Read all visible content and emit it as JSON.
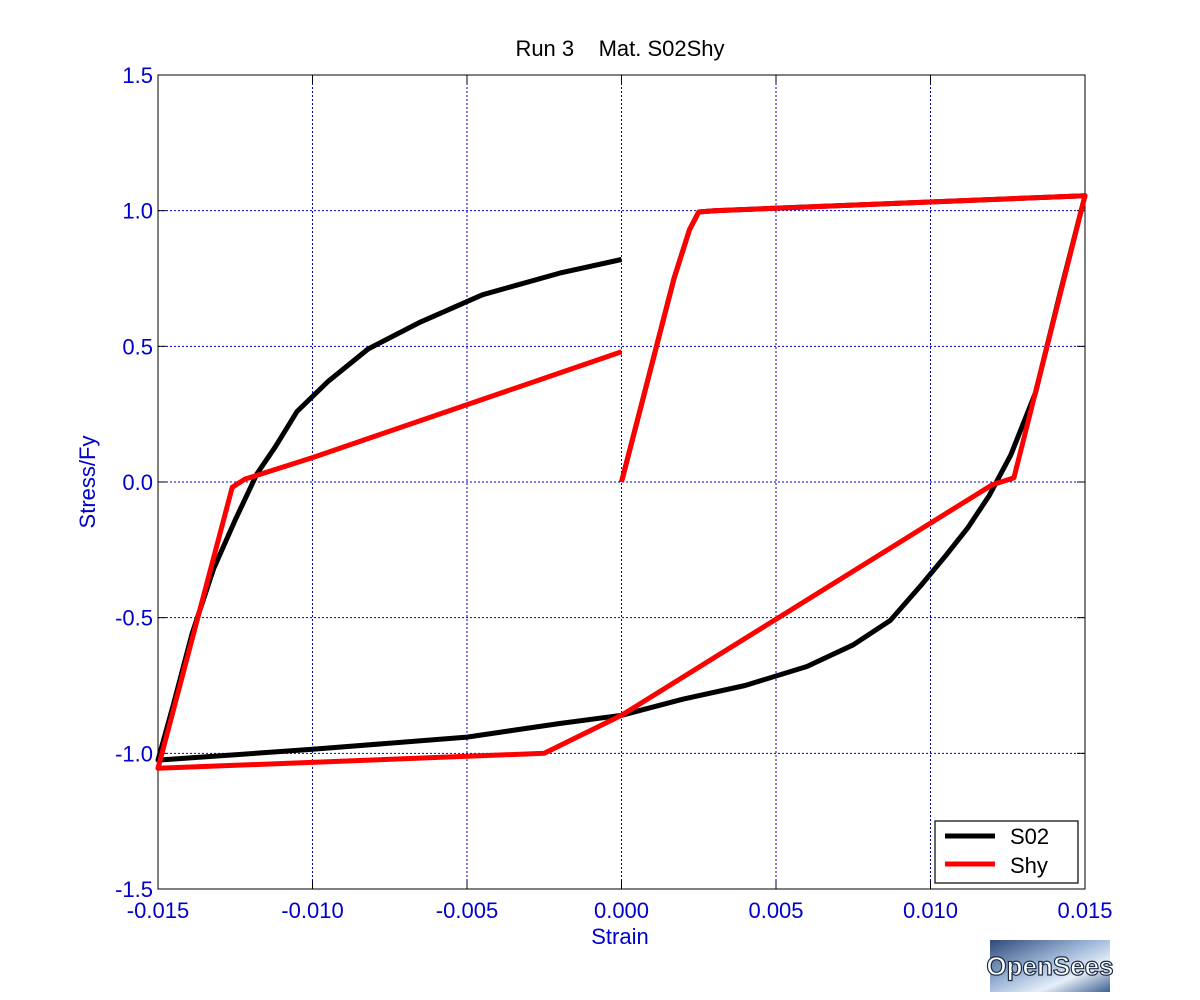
{
  "chart_data": {
    "type": "line",
    "title": "Run 3    Mat. S02Shy",
    "xlabel": "Strain",
    "ylabel": "Stress/Fy",
    "xlim": [
      -0.015,
      0.015
    ],
    "ylim": [
      -1.5,
      1.5
    ],
    "x_ticks": [
      -0.015,
      -0.01,
      -0.005,
      0.0,
      0.005,
      0.01,
      0.015
    ],
    "x_tick_labels": [
      "-0.015",
      "-0.010",
      "-0.005",
      "0.000",
      "0.005",
      "0.010",
      "0.015"
    ],
    "y_ticks": [
      1.5,
      1.0,
      0.5,
      0.0,
      -0.5,
      -1.0,
      -1.5
    ],
    "y_tick_labels": [
      "1.5",
      "1.0",
      "0.5",
      "0.0",
      "-0.5",
      "-1.0",
      "-1.5"
    ],
    "grid": true,
    "legend_position": "bottom-right",
    "series": [
      {
        "name": "S02",
        "color": "#000000",
        "segments": [
          [
            [
              0.0,
              0.0
            ],
            [
              0.0017,
              0.75
            ],
            [
              0.0022,
              0.93
            ],
            [
              0.0025,
              0.995
            ],
            [
              0.003,
              1.0
            ],
            [
              0.015,
              1.055
            ],
            [
              0.0142,
              0.7
            ],
            [
              0.0134,
              0.33
            ],
            [
              0.0126,
              0.1
            ],
            [
              0.0119,
              -0.05
            ],
            [
              0.0112,
              -0.17
            ],
            [
              0.0105,
              -0.27
            ],
            [
              0.0097,
              -0.38
            ],
            [
              0.0087,
              -0.51
            ],
            [
              0.0075,
              -0.6
            ],
            [
              0.006,
              -0.68
            ],
            [
              0.004,
              -0.75
            ],
            [
              0.002,
              -0.8
            ],
            [
              0.0,
              -0.86
            ],
            [
              -0.002,
              -0.89
            ],
            [
              -0.005,
              -0.94
            ],
            [
              -0.01,
              -0.985
            ],
            [
              -0.015,
              -1.025
            ],
            [
              -0.0145,
              -0.82
            ],
            [
              -0.0139,
              -0.56
            ],
            [
              -0.0132,
              -0.32
            ],
            [
              -0.0125,
              -0.14
            ],
            [
              -0.0118,
              0.03
            ],
            [
              -0.0112,
              0.13
            ],
            [
              -0.0105,
              0.26
            ],
            [
              -0.0095,
              0.37
            ],
            [
              -0.0082,
              0.49
            ],
            [
              -0.0065,
              0.59
            ],
            [
              -0.0045,
              0.69
            ],
            [
              -0.002,
              0.77
            ],
            [
              0.0,
              0.82
            ]
          ]
        ]
      },
      {
        "name": "Shy",
        "color": "#ff0000",
        "segments": [
          [
            [
              0.0,
              0.0
            ],
            [
              0.0017,
              0.75
            ],
            [
              0.0022,
              0.93
            ],
            [
              0.0025,
              0.995
            ],
            [
              0.003,
              1.0
            ],
            [
              0.015,
              1.055
            ],
            [
              0.0127,
              0.015
            ],
            [
              0.012,
              -0.01
            ],
            [
              0.0,
              -0.86
            ],
            [
              -0.0025,
              -1.0
            ],
            [
              -0.015,
              -1.055
            ],
            [
              -0.0126,
              -0.02
            ],
            [
              -0.0122,
              0.01
            ],
            [
              -0.01,
              0.09
            ],
            [
              0.0,
              0.48
            ]
          ]
        ]
      }
    ]
  },
  "logo": {
    "text": "OpenSees"
  }
}
